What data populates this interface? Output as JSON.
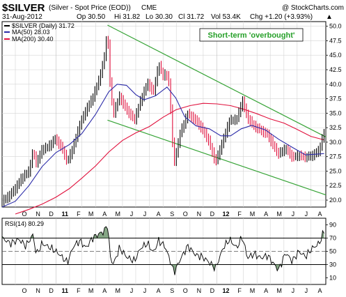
{
  "header": {
    "symbol": "$SILVER",
    "description": "(Silver - Spot Price (EOD))",
    "exchange": "CME",
    "copyright": "@ StockCharts.com",
    "date": "31-Aug-2012",
    "open": "Op 30.50",
    "high": "Hi 31.82",
    "low": "Lo 30.30",
    "close": "Cl 31.72",
    "volume": "Vol 53.4K",
    "change": "Chg +1.20 (+3.93%)",
    "change_arrow": "▲"
  },
  "legend": {
    "price": "$SILVER (Daily) 31.72",
    "ma50": "MA(50) 28.03",
    "ma200": "MA(200) 30.40"
  },
  "annotation": "Short-term 'overbought'",
  "rsi_label": "RSI(14) 80.29",
  "colors": {
    "price": "#000000",
    "down_bar": "#e0103c",
    "ma50": "#2a2aa8",
    "ma200": "#e0103c",
    "channel": "#36a336",
    "annotation_text": "#27a02a",
    "rsi": "#000000",
    "rsi_fill": "#5e8a5e",
    "grid": "#d4d4d4",
    "level_line": "#000000"
  },
  "chart_data": {
    "type": "line",
    "title": "$SILVER (Silver - Spot Price (EOD)) CME",
    "x_labels": [
      "O",
      "N",
      "D",
      "11",
      "F",
      "M",
      "A",
      "M",
      "J",
      "J",
      "A",
      "S",
      "O",
      "N",
      "D",
      "12",
      "F",
      "M",
      "A",
      "M",
      "J",
      "J",
      "A"
    ],
    "x_label_months": [
      "2010-10",
      "2010-11",
      "2010-12",
      "2011-01",
      "2011-02",
      "2011-03",
      "2011-04",
      "2011-05",
      "2011-06",
      "2011-07",
      "2011-08",
      "2011-09",
      "2011-10",
      "2011-11",
      "2011-12",
      "2012-01",
      "2012-02",
      "2012-03",
      "2012-04",
      "2012-05",
      "2012-06",
      "2012-07",
      "2012-08"
    ],
    "x_range": [
      "2010-09-01",
      "2012-09-04"
    ],
    "y_ticks": [
      20.0,
      22.5,
      25.0,
      27.5,
      30.0,
      32.5,
      35.0,
      37.5,
      40.0,
      42.5,
      45.0,
      47.5,
      50.0
    ],
    "y_tick_labels": [
      "20.0",
      "22.5",
      "25.0",
      "27.5",
      "30.0",
      "32.5",
      "35.0",
      "37.5",
      "40.0",
      "42.5",
      "45.0",
      "47.5",
      "50.0"
    ],
    "ylim": [
      18.8,
      50.8
    ],
    "grid": true,
    "series": [
      {
        "name": "$SILVER (Daily) 31.72",
        "style": "price-bars",
        "points": [
          [
            "2010-09-01",
            19.8
          ],
          [
            "2010-09-15",
            20.6
          ],
          [
            "2010-10-01",
            22.0
          ],
          [
            "2010-10-15",
            23.8
          ],
          [
            "2010-11-01",
            25.0
          ],
          [
            "2010-11-10",
            28.4
          ],
          [
            "2010-11-18",
            26.3
          ],
          [
            "2010-12-01",
            28.8
          ],
          [
            "2010-12-15",
            29.2
          ],
          [
            "2010-12-31",
            30.6
          ],
          [
            "2011-01-15",
            28.9
          ],
          [
            "2011-01-27",
            26.6
          ],
          [
            "2011-02-10",
            29.4
          ],
          [
            "2011-02-25",
            33.2
          ],
          [
            "2011-03-10",
            35.5
          ],
          [
            "2011-03-25",
            37.6
          ],
          [
            "2011-04-08",
            40.6
          ],
          [
            "2011-04-20",
            44.2
          ],
          [
            "2011-04-28",
            49.3
          ],
          [
            "2011-05-05",
            38.4
          ],
          [
            "2011-05-12",
            35.0
          ],
          [
            "2011-05-25",
            37.9
          ],
          [
            "2011-06-10",
            35.6
          ],
          [
            "2011-06-28",
            33.8
          ],
          [
            "2011-07-12",
            37.2
          ],
          [
            "2011-07-28",
            40.2
          ],
          [
            "2011-08-10",
            38.6
          ],
          [
            "2011-08-22",
            43.4
          ],
          [
            "2011-09-01",
            41.5
          ],
          [
            "2011-09-08",
            41.8
          ],
          [
            "2011-09-15",
            40.0
          ],
          [
            "2011-09-22",
            30.5
          ],
          [
            "2011-09-26",
            26.3
          ],
          [
            "2011-10-10",
            31.6
          ],
          [
            "2011-10-27",
            34.9
          ],
          [
            "2011-11-15",
            33.7
          ],
          [
            "2011-11-28",
            32.3
          ],
          [
            "2011-12-12",
            30.5
          ],
          [
            "2011-12-29",
            26.5
          ],
          [
            "2012-01-15",
            30.3
          ],
          [
            "2012-01-30",
            33.8
          ],
          [
            "2012-02-15",
            33.9
          ],
          [
            "2012-02-28",
            37.2
          ],
          [
            "2012-03-10",
            34.2
          ],
          [
            "2012-03-25",
            32.8
          ],
          [
            "2012-04-10",
            32.0
          ],
          [
            "2012-04-25",
            31.3
          ],
          [
            "2012-05-10",
            29.1
          ],
          [
            "2012-05-20",
            28.0
          ],
          [
            "2012-06-05",
            28.9
          ],
          [
            "2012-06-20",
            27.4
          ],
          [
            "2012-07-05",
            27.7
          ],
          [
            "2012-07-20",
            27.4
          ],
          [
            "2012-08-05",
            27.7
          ],
          [
            "2012-08-20",
            28.6
          ],
          [
            "2012-08-31",
            31.72
          ]
        ]
      },
      {
        "name": "MA(50) 28.03",
        "style": "line",
        "points": [
          [
            "2010-09-01",
            18.8
          ],
          [
            "2010-10-01",
            19.8
          ],
          [
            "2010-11-01",
            22.5
          ],
          [
            "2010-12-01",
            25.8
          ],
          [
            "2011-01-01",
            28.2
          ],
          [
            "2011-02-01",
            29.6
          ],
          [
            "2011-03-01",
            31.5
          ],
          [
            "2011-04-01",
            34.8
          ],
          [
            "2011-05-01",
            38.7
          ],
          [
            "2011-05-20",
            40.0
          ],
          [
            "2011-06-10",
            39.8
          ],
          [
            "2011-07-01",
            38.2
          ],
          [
            "2011-07-20",
            37.3
          ],
          [
            "2011-08-15",
            38.0
          ],
          [
            "2011-09-10",
            39.5
          ],
          [
            "2011-09-30",
            37.6
          ],
          [
            "2011-10-20",
            34.4
          ],
          [
            "2011-11-15",
            32.8
          ],
          [
            "2011-12-15",
            32.3
          ],
          [
            "2012-01-10",
            31.1
          ],
          [
            "2012-02-01",
            31.1
          ],
          [
            "2012-02-25",
            32.3
          ],
          [
            "2012-03-20",
            32.9
          ],
          [
            "2012-04-20",
            32.1
          ],
          [
            "2012-05-20",
            30.5
          ],
          [
            "2012-06-20",
            29.1
          ],
          [
            "2012-07-20",
            27.8
          ],
          [
            "2012-08-31",
            28.03
          ]
        ]
      },
      {
        "name": "MA(200) 30.40",
        "style": "line",
        "points": [
          [
            "2010-10-01",
            17.6
          ],
          [
            "2010-11-01",
            18.4
          ],
          [
            "2010-12-01",
            19.3
          ],
          [
            "2011-01-01",
            20.5
          ],
          [
            "2011-02-01",
            22.0
          ],
          [
            "2011-03-01",
            23.8
          ],
          [
            "2011-04-01",
            25.9
          ],
          [
            "2011-05-01",
            28.3
          ],
          [
            "2011-06-01",
            30.3
          ],
          [
            "2011-07-01",
            31.6
          ],
          [
            "2011-08-01",
            32.7
          ],
          [
            "2011-09-01",
            34.3
          ],
          [
            "2011-10-01",
            35.6
          ],
          [
            "2011-11-01",
            36.3
          ],
          [
            "2011-12-01",
            36.7
          ],
          [
            "2012-01-01",
            36.6
          ],
          [
            "2012-02-01",
            36.3
          ],
          [
            "2012-03-01",
            35.7
          ],
          [
            "2012-04-01",
            34.9
          ],
          [
            "2012-05-01",
            34.0
          ],
          [
            "2012-06-01",
            33.3
          ],
          [
            "2012-07-01",
            32.2
          ],
          [
            "2012-08-01",
            31.0
          ],
          [
            "2012-08-31",
            30.4
          ]
        ]
      }
    ],
    "channel_lines": [
      {
        "name": "upper",
        "points": [
          [
            "2011-04-28",
            50.2
          ],
          [
            "2012-09-04",
            30.9
          ]
        ]
      },
      {
        "name": "lower",
        "points": [
          [
            "2011-04-28",
            33.8
          ],
          [
            "2012-09-04",
            20.9
          ]
        ]
      }
    ],
    "rsi_panel": {
      "name": "RSI(14) 80.29",
      "y_ticks": [
        10,
        30,
        50,
        70,
        90
      ],
      "ylim": [
        0,
        100
      ],
      "levels": [
        30,
        70
      ],
      "center": 50,
      "points": [
        [
          "2010-09-01",
          70
        ],
        [
          "2010-09-20",
          62
        ],
        [
          "2010-10-10",
          68
        ],
        [
          "2010-10-25",
          58
        ],
        [
          "2010-11-10",
          75
        ],
        [
          "2010-11-18",
          45
        ],
        [
          "2010-12-01",
          62
        ],
        [
          "2010-12-20",
          55
        ],
        [
          "2011-01-05",
          48
        ],
        [
          "2011-01-27",
          33
        ],
        [
          "2011-02-10",
          58
        ],
        [
          "2011-02-25",
          66
        ],
        [
          "2011-03-10",
          55
        ],
        [
          "2011-03-25",
          70
        ],
        [
          "2011-04-08",
          76
        ],
        [
          "2011-04-20",
          80
        ],
        [
          "2011-04-28",
          90
        ],
        [
          "2011-05-05",
          38
        ],
        [
          "2011-05-12",
          31
        ],
        [
          "2011-05-25",
          55
        ],
        [
          "2011-06-10",
          42
        ],
        [
          "2011-06-28",
          35
        ],
        [
          "2011-07-12",
          55
        ],
        [
          "2011-07-28",
          62
        ],
        [
          "2011-08-10",
          48
        ],
        [
          "2011-08-22",
          66
        ],
        [
          "2011-09-05",
          58
        ],
        [
          "2011-09-15",
          40
        ],
        [
          "2011-09-26",
          18
        ],
        [
          "2011-10-10",
          38
        ],
        [
          "2011-10-27",
          58
        ],
        [
          "2011-11-15",
          44
        ],
        [
          "2011-11-28",
          42
        ],
        [
          "2011-12-12",
          35
        ],
        [
          "2011-12-29",
          24
        ],
        [
          "2012-01-15",
          55
        ],
        [
          "2012-01-30",
          68
        ],
        [
          "2012-02-15",
          55
        ],
        [
          "2012-02-28",
          72
        ],
        [
          "2012-03-10",
          40
        ],
        [
          "2012-03-25",
          46
        ],
        [
          "2012-04-10",
          40
        ],
        [
          "2012-04-25",
          44
        ],
        [
          "2012-05-10",
          30
        ],
        [
          "2012-05-20",
          22
        ],
        [
          "2012-06-05",
          48
        ],
        [
          "2012-06-20",
          35
        ],
        [
          "2012-07-05",
          50
        ],
        [
          "2012-07-20",
          42
        ],
        [
          "2012-08-05",
          55
        ],
        [
          "2012-08-20",
          62
        ],
        [
          "2012-08-31",
          80.29
        ]
      ]
    }
  }
}
